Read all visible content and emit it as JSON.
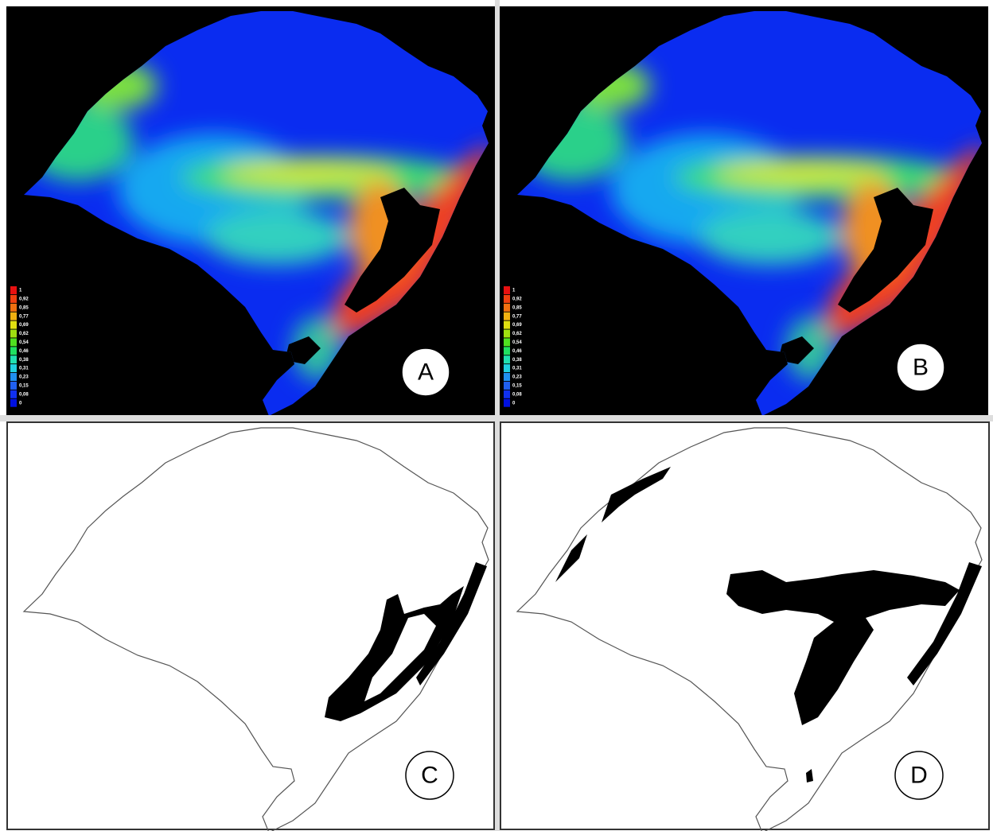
{
  "panels": [
    {
      "label": "A",
      "legend": [
        "1",
        "0,92",
        "0,85",
        "0,77",
        "0,69",
        "0,62",
        "0,54",
        "0,46",
        "0,38",
        "0,31",
        "0,23",
        "0,15",
        "0,08",
        "0"
      ]
    },
    {
      "label": "B",
      "legend": [
        "1",
        "0,92",
        "0,85",
        "0,77",
        "0,69",
        "0,62",
        "0,54",
        "0,46",
        "0,38",
        "0,31",
        "0,23",
        "0,15",
        "0,08",
        "0"
      ]
    },
    {
      "label": "C"
    },
    {
      "label": "D"
    }
  ]
}
